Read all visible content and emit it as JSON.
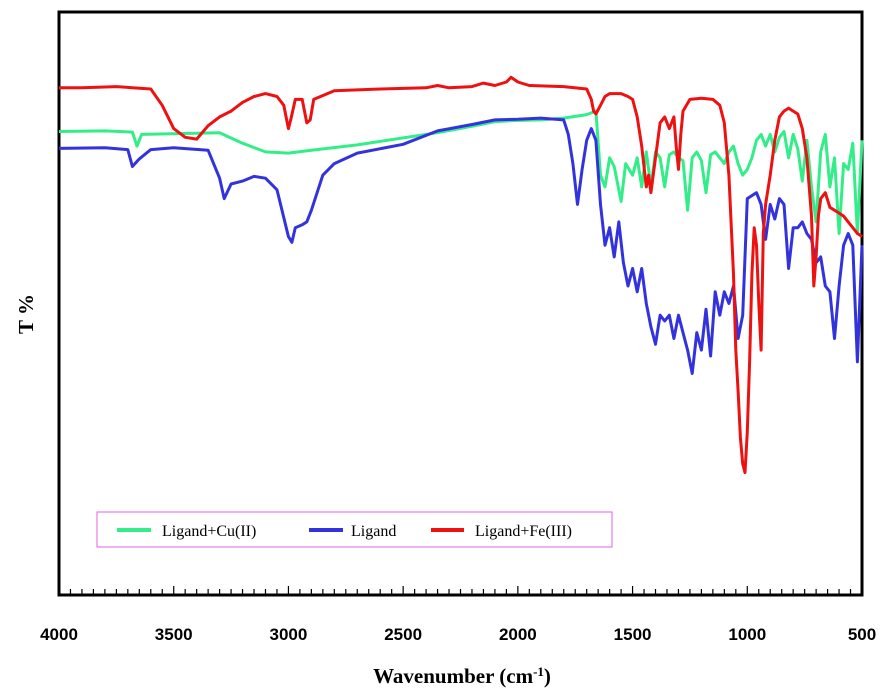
{
  "chart_data": {
    "type": "line",
    "title": "",
    "xlabel": "Wavenumber (cm",
    "xlabel_sup": "-1",
    "xlabel_close": ")",
    "ylabel": "T %",
    "xlim": [
      4000,
      500
    ],
    "x_reversed": true,
    "ylim": [
      0,
      100
    ],
    "x_ticks": [
      "4000",
      "3500",
      "3000",
      "2500",
      "2000",
      "1500",
      "1000",
      "500"
    ],
    "grid": false,
    "legend_position": "bottom-left",
    "series": [
      {
        "name": "Ligand+Cu(II)",
        "color": "#33ee88",
        "points": [
          [
            4000,
            79.5
          ],
          [
            3800,
            79.6
          ],
          [
            3680,
            79.4
          ],
          [
            3660,
            77.0
          ],
          [
            3640,
            79.0
          ],
          [
            3300,
            79.3
          ],
          [
            3200,
            77.5
          ],
          [
            3100,
            76.0
          ],
          [
            3000,
            75.8
          ],
          [
            2900,
            76.3
          ],
          [
            2700,
            77.2
          ],
          [
            2500,
            78.4
          ],
          [
            2350,
            79.3
          ],
          [
            2200,
            80.4
          ],
          [
            2100,
            81.2
          ],
          [
            2000,
            81.4
          ],
          [
            1900,
            81.5
          ],
          [
            1800,
            81.8
          ],
          [
            1700,
            82.4
          ],
          [
            1660,
            83.0
          ],
          [
            1640,
            72.0
          ],
          [
            1620,
            70.0
          ],
          [
            1600,
            75.0
          ],
          [
            1580,
            73.5
          ],
          [
            1550,
            67.5
          ],
          [
            1530,
            74.0
          ],
          [
            1500,
            72.0
          ],
          [
            1480,
            75.0
          ],
          [
            1460,
            70.0
          ],
          [
            1440,
            76.0
          ],
          [
            1420,
            70.0
          ],
          [
            1400,
            76.0
          ],
          [
            1380,
            75.0
          ],
          [
            1360,
            70.0
          ],
          [
            1340,
            75.5
          ],
          [
            1320,
            76.0
          ],
          [
            1300,
            75.0
          ],
          [
            1280,
            74.5
          ],
          [
            1260,
            66.0
          ],
          [
            1240,
            75.0
          ],
          [
            1220,
            76.0
          ],
          [
            1200,
            74.5
          ],
          [
            1180,
            69.0
          ],
          [
            1160,
            75.5
          ],
          [
            1140,
            76.0
          ],
          [
            1120,
            75.0
          ],
          [
            1100,
            74.0
          ],
          [
            1080,
            76.0
          ],
          [
            1060,
            77.0
          ],
          [
            1040,
            74.0
          ],
          [
            1020,
            72.0
          ],
          [
            1000,
            73.0
          ],
          [
            980,
            75.0
          ],
          [
            960,
            78.0
          ],
          [
            940,
            79.0
          ],
          [
            920,
            77.0
          ],
          [
            900,
            79.0
          ],
          [
            880,
            76.0
          ],
          [
            860,
            78.5
          ],
          [
            840,
            79.5
          ],
          [
            820,
            75.0
          ],
          [
            800,
            79.0
          ],
          [
            780,
            76.5
          ],
          [
            760,
            71.0
          ],
          [
            740,
            78.0
          ],
          [
            720,
            70.0
          ],
          [
            700,
            64.0
          ],
          [
            680,
            76.0
          ],
          [
            660,
            79.0
          ],
          [
            640,
            70.0
          ],
          [
            620,
            75.0
          ],
          [
            600,
            62.0
          ],
          [
            580,
            74.0
          ],
          [
            560,
            73.0
          ],
          [
            540,
            77.5
          ],
          [
            520,
            62.0
          ],
          [
            500,
            78.0
          ]
        ]
      },
      {
        "name": "Ligand",
        "color": "#3333dd",
        "points": [
          [
            4000,
            76.6
          ],
          [
            3800,
            76.7
          ],
          [
            3700,
            76.4
          ],
          [
            3680,
            73.5
          ],
          [
            3650,
            74.8
          ],
          [
            3600,
            76.4
          ],
          [
            3500,
            76.7
          ],
          [
            3350,
            76.3
          ],
          [
            3300,
            71.5
          ],
          [
            3280,
            68.0
          ],
          [
            3250,
            70.5
          ],
          [
            3200,
            71.0
          ],
          [
            3150,
            71.8
          ],
          [
            3100,
            71.5
          ],
          [
            3050,
            69.5
          ],
          [
            3000,
            61.5
          ],
          [
            2985,
            60.5
          ],
          [
            2970,
            63.0
          ],
          [
            2940,
            63.5
          ],
          [
            2920,
            64.0
          ],
          [
            2900,
            66.0
          ],
          [
            2850,
            72.0
          ],
          [
            2800,
            74.0
          ],
          [
            2700,
            75.8
          ],
          [
            2500,
            77.3
          ],
          [
            2350,
            79.6
          ],
          [
            2200,
            80.7
          ],
          [
            2100,
            81.5
          ],
          [
            2000,
            81.6
          ],
          [
            1900,
            81.8
          ],
          [
            1800,
            81.5
          ],
          [
            1780,
            79.0
          ],
          [
            1760,
            74.0
          ],
          [
            1740,
            67.0
          ],
          [
            1720,
            73.0
          ],
          [
            1700,
            78.0
          ],
          [
            1680,
            80.0
          ],
          [
            1660,
            78.0
          ],
          [
            1640,
            67.0
          ],
          [
            1620,
            60.0
          ],
          [
            1600,
            63.0
          ],
          [
            1580,
            58.0
          ],
          [
            1560,
            64.0
          ],
          [
            1540,
            57.0
          ],
          [
            1520,
            53.0
          ],
          [
            1500,
            56.0
          ],
          [
            1480,
            52.0
          ],
          [
            1460,
            56.0
          ],
          [
            1440,
            50.0
          ],
          [
            1420,
            46.0
          ],
          [
            1400,
            43.0
          ],
          [
            1380,
            48.0
          ],
          [
            1360,
            47.0
          ],
          [
            1340,
            48.0
          ],
          [
            1320,
            44.0
          ],
          [
            1300,
            48.0
          ],
          [
            1280,
            45.0
          ],
          [
            1260,
            42.0
          ],
          [
            1240,
            38.0
          ],
          [
            1220,
            45.0
          ],
          [
            1200,
            42.0
          ],
          [
            1180,
            49.0
          ],
          [
            1160,
            41.0
          ],
          [
            1140,
            52.0
          ],
          [
            1120,
            48.0
          ],
          [
            1100,
            52.0
          ],
          [
            1080,
            50.0
          ],
          [
            1060,
            53.0
          ],
          [
            1040,
            44.0
          ],
          [
            1020,
            48.0
          ],
          [
            1000,
            68.0
          ],
          [
            980,
            68.5
          ],
          [
            960,
            69.0
          ],
          [
            940,
            67.0
          ],
          [
            920,
            61.0
          ],
          [
            900,
            67.0
          ],
          [
            880,
            64.5
          ],
          [
            860,
            68.0
          ],
          [
            840,
            67.0
          ],
          [
            820,
            56.0
          ],
          [
            800,
            63.0
          ],
          [
            780,
            63.0
          ],
          [
            760,
            64.0
          ],
          [
            740,
            62.0
          ],
          [
            720,
            61.0
          ],
          [
            700,
            57.0
          ],
          [
            680,
            58.0
          ],
          [
            660,
            53.0
          ],
          [
            640,
            52.0
          ],
          [
            620,
            44.0
          ],
          [
            600,
            53.0
          ],
          [
            580,
            60.0
          ],
          [
            560,
            62.0
          ],
          [
            540,
            60.0
          ],
          [
            520,
            40.0
          ],
          [
            500,
            60.0
          ]
        ]
      },
      {
        "name": "Ligand+Fe(III)",
        "color": "#ee1111",
        "points": [
          [
            4000,
            87.0
          ],
          [
            3900,
            87.0
          ],
          [
            3750,
            87.2
          ],
          [
            3600,
            86.8
          ],
          [
            3550,
            84.0
          ],
          [
            3500,
            80.0
          ],
          [
            3450,
            78.5
          ],
          [
            3400,
            78.2
          ],
          [
            3350,
            80.5
          ],
          [
            3300,
            82.0
          ],
          [
            3250,
            83.0
          ],
          [
            3200,
            84.5
          ],
          [
            3150,
            85.5
          ],
          [
            3100,
            86.0
          ],
          [
            3050,
            85.5
          ],
          [
            3020,
            84.0
          ],
          [
            3000,
            80.0
          ],
          [
            2990,
            81.5
          ],
          [
            2970,
            85.0
          ],
          [
            2940,
            85.0
          ],
          [
            2920,
            81.0
          ],
          [
            2905,
            81.5
          ],
          [
            2890,
            85.0
          ],
          [
            2800,
            86.5
          ],
          [
            2600,
            86.8
          ],
          [
            2500,
            86.9
          ],
          [
            2400,
            87.0
          ],
          [
            2350,
            87.4
          ],
          [
            2300,
            87.0
          ],
          [
            2200,
            87.2
          ],
          [
            2150,
            87.8
          ],
          [
            2100,
            87.4
          ],
          [
            2050,
            88.0
          ],
          [
            2030,
            88.8
          ],
          [
            2000,
            88.0
          ],
          [
            1950,
            87.4
          ],
          [
            1800,
            87.2
          ],
          [
            1700,
            86.8
          ],
          [
            1680,
            85.0
          ],
          [
            1670,
            83.0
          ],
          [
            1660,
            82.5
          ],
          [
            1640,
            84.0
          ],
          [
            1620,
            85.5
          ],
          [
            1600,
            86.0
          ],
          [
            1550,
            86.0
          ],
          [
            1520,
            85.5
          ],
          [
            1500,
            85.0
          ],
          [
            1480,
            82.0
          ],
          [
            1460,
            77.0
          ],
          [
            1440,
            70.0
          ],
          [
            1430,
            72.0
          ],
          [
            1420,
            69.0
          ],
          [
            1400,
            75.0
          ],
          [
            1380,
            81.0
          ],
          [
            1360,
            82.0
          ],
          [
            1350,
            81.0
          ],
          [
            1340,
            80.0
          ],
          [
            1320,
            82.0
          ],
          [
            1310,
            77.0
          ],
          [
            1300,
            73.0
          ],
          [
            1290,
            79.0
          ],
          [
            1280,
            83.0
          ],
          [
            1250,
            85.0
          ],
          [
            1200,
            85.2
          ],
          [
            1150,
            85.0
          ],
          [
            1120,
            84.0
          ],
          [
            1100,
            81.0
          ],
          [
            1080,
            72.0
          ],
          [
            1060,
            55.0
          ],
          [
            1050,
            42.0
          ],
          [
            1040,
            35.0
          ],
          [
            1030,
            27.0
          ],
          [
            1020,
            22.5
          ],
          [
            1010,
            21.0
          ],
          [
            1000,
            28.0
          ],
          [
            990,
            40.0
          ],
          [
            980,
            55.0
          ],
          [
            970,
            63.0
          ],
          [
            960,
            60.0
          ],
          [
            950,
            50.0
          ],
          [
            940,
            42.0
          ],
          [
            930,
            62.0
          ],
          [
            920,
            67.0
          ],
          [
            900,
            72.0
          ],
          [
            880,
            78.0
          ],
          [
            860,
            82.0
          ],
          [
            840,
            83.0
          ],
          [
            820,
            83.5
          ],
          [
            800,
            83.0
          ],
          [
            780,
            82.5
          ],
          [
            760,
            80.0
          ],
          [
            740,
            75.0
          ],
          [
            720,
            65.0
          ],
          [
            710,
            53.0
          ],
          [
            700,
            58.0
          ],
          [
            690,
            65.0
          ],
          [
            680,
            68.0
          ],
          [
            660,
            69.0
          ],
          [
            640,
            66.5
          ],
          [
            620,
            66.0
          ],
          [
            600,
            65.5
          ],
          [
            580,
            65.0
          ],
          [
            560,
            64.0
          ],
          [
            540,
            63.0
          ],
          [
            520,
            62.0
          ],
          [
            500,
            61.5
          ]
        ]
      }
    ]
  }
}
